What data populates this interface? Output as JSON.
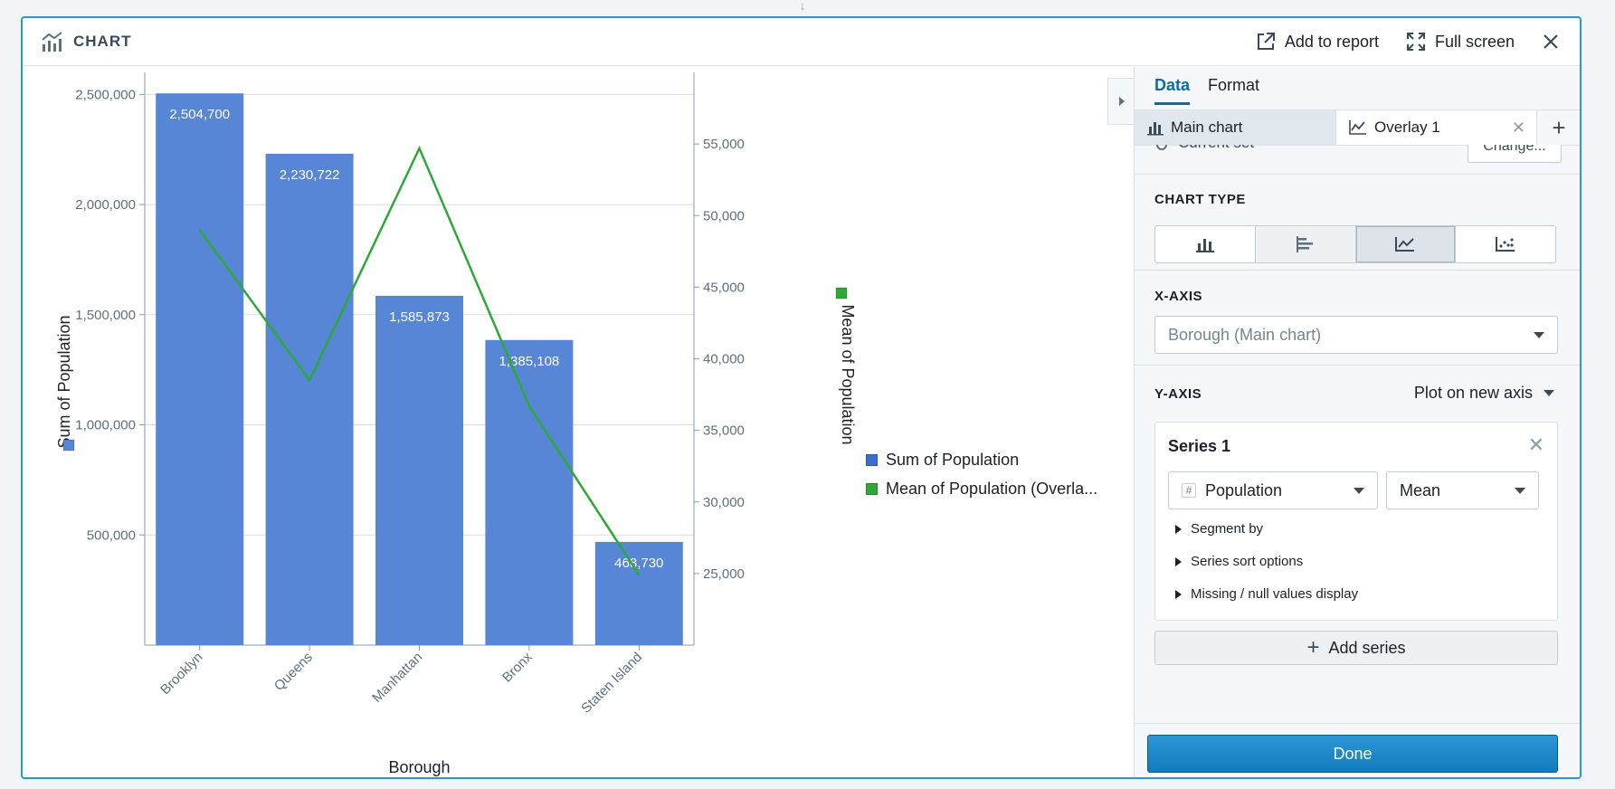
{
  "header": {
    "title": "CHART",
    "add_to_report": "Add to report",
    "full_screen": "Full screen"
  },
  "chart_data": {
    "type": "bar",
    "categories": [
      "Brooklyn",
      "Queens",
      "Manhattan",
      "Bronx",
      "Staten Island"
    ],
    "series": [
      {
        "name": "Sum of Population",
        "type": "bar",
        "axis": "left",
        "color": "#5886d6",
        "values": [
          2504700,
          2230722,
          1585873,
          1385108,
          468730
        ],
        "labels": [
          "2,504,700",
          "2,230,722",
          "1,585,873",
          "1,385,108",
          "468,730"
        ]
      },
      {
        "name": "Mean of Population",
        "type": "line",
        "axis": "right",
        "color": "#2ea836",
        "values": [
          49000,
          38500,
          54700,
          36700,
          24900
        ]
      }
    ],
    "xlabel": "Borough",
    "ylabel": "Sum of Population",
    "ylabel_right": "Mean of Population",
    "ylim": [
      0,
      2600000
    ],
    "ylim_right": [
      20000,
      60000
    ],
    "yticks": [
      500000,
      1000000,
      1500000,
      2000000,
      2500000
    ],
    "ytick_labels": [
      "500,000",
      "1,000,000",
      "1,500,000",
      "2,000,000",
      "2,500,000"
    ],
    "yticks_right": [
      25000,
      30000,
      35000,
      40000,
      45000,
      50000,
      55000
    ],
    "ytick_labels_right": [
      "25,000",
      "30,000",
      "35,000",
      "40,000",
      "45,000",
      "50,000",
      "55,000"
    ],
    "grid": true,
    "legend_position": "right"
  },
  "legend": {
    "items": [
      {
        "label": "Sum of Population",
        "color": "#3a6fcf"
      },
      {
        "label": "Mean of Population (Overla...",
        "color": "#2ea836"
      }
    ]
  },
  "panel": {
    "tabs": [
      "Data",
      "Format"
    ],
    "subtabs": {
      "main": "Main chart",
      "overlay": "Overlay 1"
    },
    "partial_row": {
      "text": "Current set",
      "button": "Change..."
    },
    "chart_type_label": "CHART TYPE",
    "chart_type_options": [
      "bar-vertical-icon",
      "bar-horizontal-icon",
      "line-icon",
      "scatter-icon"
    ],
    "x_axis_label": "X-AXIS",
    "x_axis_value": "Borough (Main chart)",
    "y_axis_label": "Y-AXIS",
    "plot_on": "Plot on new axis",
    "series": {
      "title": "Series 1",
      "field": "Population",
      "aggregation": "Mean",
      "options": [
        "Segment by",
        "Series sort options",
        "Missing / null values display"
      ]
    },
    "add_series": "Add series",
    "done": "Done"
  }
}
